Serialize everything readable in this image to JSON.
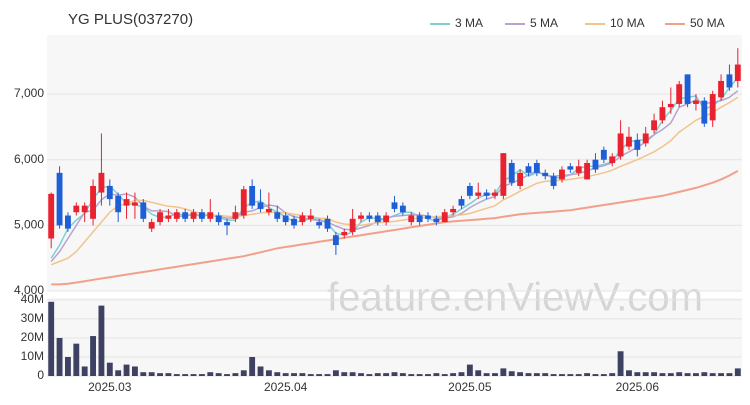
{
  "chart_data": {
    "type": "candlestick",
    "title": "YG PLUS(037270)",
    "watermark": "feature.enViewV.com",
    "categories": [
      null,
      null,
      null,
      null,
      null,
      null,
      null,
      "2025.03",
      null,
      null,
      null,
      null,
      null,
      null,
      null,
      null,
      null,
      null,
      null,
      null,
      null,
      null,
      null,
      null,
      null,
      null,
      null,
      null,
      "2025.04",
      null,
      null,
      null,
      null,
      null,
      null,
      null,
      null,
      null,
      null,
      null,
      null,
      null,
      null,
      null,
      null,
      null,
      null,
      null,
      null,
      null,
      "2025.05",
      null,
      null,
      null,
      null,
      null,
      null,
      null,
      null,
      null,
      null,
      null,
      null,
      null,
      null,
      null,
      null,
      null,
      null,
      null,
      "2025.06",
      null,
      null,
      null,
      null,
      null,
      null,
      null,
      null,
      null,
      null,
      null,
      null
    ],
    "open": [
      4800,
      5800,
      5150,
      5200,
      5200,
      5100,
      5500,
      5600,
      5450,
      5300,
      5300,
      5350,
      4950,
      5050,
      5100,
      5100,
      5200,
      5100,
      5200,
      5100,
      5150,
      5050,
      5100,
      5150,
      5600,
      5350,
      5200,
      5200,
      5150,
      5100,
      5050,
      5100,
      5050,
      5100,
      4850,
      4850,
      4900,
      5100,
      5150,
      5150,
      5050,
      5350,
      5300,
      5050,
      5150,
      5150,
      5100,
      5050,
      5200,
      5400,
      5600,
      5450,
      5500,
      5450,
      5450,
      5950,
      5600,
      5900,
      5950,
      5800,
      5750,
      5700,
      5900,
      5800,
      5700,
      6000,
      6150,
      5950,
      6050,
      6200,
      6300,
      6250,
      6450,
      6600,
      6800,
      6850,
      7300,
      6850,
      6900,
      6600,
      6950,
      7300,
      7200
    ],
    "high": [
      5500,
      5900,
      5200,
      5350,
      5350,
      5700,
      6400,
      5700,
      5500,
      5500,
      5500,
      5400,
      5100,
      5250,
      5250,
      5250,
      5250,
      5250,
      5250,
      5400,
      5200,
      5100,
      5300,
      5600,
      5700,
      5550,
      5500,
      5300,
      5200,
      5150,
      5200,
      5250,
      5100,
      5150,
      4900,
      4950,
      5250,
      5200,
      5200,
      5200,
      5200,
      5450,
      5350,
      5200,
      5200,
      5200,
      5150,
      5250,
      5300,
      5450,
      5650,
      5650,
      5550,
      5550,
      6100,
      6000,
      5850,
      5950,
      6000,
      5850,
      5800,
      5900,
      5950,
      6000,
      6000,
      6100,
      6200,
      6100,
      6600,
      6500,
      6400,
      6500,
      6700,
      6900,
      7100,
      7200,
      7300,
      7000,
      6950,
      7050,
      7300,
      7450,
      7700
    ],
    "low": [
      4650,
      4950,
      4900,
      5150,
      5050,
      5000,
      5300,
      5300,
      5050,
      5100,
      5100,
      5050,
      4900,
      5000,
      5050,
      5050,
      5050,
      5050,
      5050,
      5050,
      5000,
      4850,
      5050,
      5100,
      5250,
      5200,
      5150,
      5050,
      5000,
      4950,
      5000,
      5050,
      4950,
      4900,
      4550,
      4800,
      4850,
      5050,
      5050,
      5000,
      5000,
      5200,
      5150,
      5000,
      5000,
      5050,
      5000,
      5050,
      5150,
      5250,
      5400,
      5400,
      5400,
      5400,
      5400,
      5600,
      5550,
      5750,
      5750,
      5700,
      5550,
      5650,
      5800,
      5750,
      5700,
      5800,
      5950,
      5900,
      6000,
      6150,
      6050,
      6200,
      6400,
      6550,
      6700,
      6800,
      6800,
      6750,
      6500,
      6500,
      6900,
      7050,
      7100
    ],
    "close": [
      5480,
      5000,
      4950,
      5300,
      5300,
      5600,
      5800,
      5400,
      5200,
      5400,
      5350,
      5100,
      5050,
      5200,
      5150,
      5200,
      5100,
      5200,
      5100,
      5200,
      5050,
      5000,
      5200,
      5550,
      5300,
      5250,
      5250,
      5100,
      5050,
      5000,
      5150,
      5150,
      5000,
      4950,
      4700,
      4900,
      5100,
      5150,
      5100,
      5050,
      5150,
      5250,
      5200,
      5150,
      5050,
      5100,
      5050,
      5200,
      5250,
      5300,
      5450,
      5500,
      5450,
      5500,
      6100,
      5650,
      5800,
      5800,
      5800,
      5750,
      5600,
      5850,
      5850,
      5900,
      5950,
      5850,
      6000,
      6050,
      6400,
      6350,
      6150,
      6400,
      6600,
      6800,
      6850,
      7150,
      6850,
      6900,
      6550,
      7000,
      7200,
      7100,
      7450
    ],
    "up_color": "#e8222e",
    "down_color": "#1f5fd6",
    "ylim": [
      4000,
      7900
    ],
    "yticks": [
      {
        "value": 4000,
        "label": "4,000"
      },
      {
        "value": 5000,
        "label": "5,000"
      },
      {
        "value": 6000,
        "label": "6,000"
      },
      {
        "value": 7000,
        "label": "7,000"
      }
    ],
    "grid": true,
    "legend": "top-right",
    "series": [
      {
        "name": "3 MA",
        "color": "#7ecfd4",
        "values": [
          4500,
          4700,
          4950,
          5080,
          5180,
          5400,
          5570,
          5600,
          5470,
          5330,
          5320,
          5280,
          5170,
          5120,
          5130,
          5180,
          5150,
          5170,
          5130,
          5170,
          5120,
          5080,
          5080,
          5270,
          5350,
          5370,
          5270,
          5200,
          5130,
          5050,
          5070,
          5100,
          5100,
          5030,
          4880,
          4850,
          4900,
          5050,
          5120,
          5100,
          5100,
          5150,
          5200,
          5200,
          5130,
          5100,
          5070,
          5120,
          5170,
          5250,
          5330,
          5420,
          5470,
          5480,
          5680,
          5750,
          5850,
          5750,
          5800,
          5780,
          5720,
          5730,
          5770,
          5870,
          5900,
          5900,
          5930,
          5970,
          6150,
          6270,
          6300,
          6300,
          6380,
          6600,
          6750,
          6930,
          6950,
          6970,
          6770,
          6820,
          6920,
          7100,
          7250
        ]
      },
      {
        "name": "5 MA",
        "color": "#b7a3cf",
        "values": [
          4450,
          4600,
          4800,
          5000,
          5200,
          5230,
          5390,
          5480,
          5460,
          5480,
          5430,
          5290,
          5220,
          5220,
          5210,
          5140,
          5140,
          5170,
          5150,
          5160,
          5130,
          5110,
          5110,
          5200,
          5220,
          5270,
          5310,
          5290,
          5190,
          5130,
          5110,
          5090,
          5070,
          5050,
          4990,
          4940,
          4930,
          4960,
          5000,
          5060,
          5110,
          5140,
          5150,
          5160,
          5160,
          5140,
          5110,
          5110,
          5130,
          5180,
          5270,
          5340,
          5400,
          5440,
          5600,
          5640,
          5700,
          5770,
          5830,
          5760,
          5750,
          5760,
          5770,
          5790,
          5830,
          5880,
          5910,
          5950,
          6050,
          6120,
          6190,
          6270,
          6380,
          6460,
          6560,
          6800,
          6850,
          6910,
          6860,
          6870,
          6900,
          6950,
          7050
        ]
      },
      {
        "name": "10 MA",
        "color": "#f2c48d",
        "values": [
          4400,
          4450,
          4500,
          4600,
          4750,
          4900,
          5050,
          5200,
          5300,
          5330,
          5380,
          5380,
          5350,
          5320,
          5290,
          5280,
          5250,
          5210,
          5180,
          5160,
          5150,
          5140,
          5130,
          5150,
          5170,
          5190,
          5200,
          5200,
          5190,
          5170,
          5150,
          5130,
          5110,
          5100,
          5050,
          5020,
          5010,
          5000,
          5020,
          5040,
          5050,
          5060,
          5080,
          5100,
          5110,
          5120,
          5130,
          5140,
          5150,
          5160,
          5180,
          5220,
          5260,
          5300,
          5390,
          5450,
          5520,
          5580,
          5640,
          5670,
          5680,
          5690,
          5700,
          5720,
          5740,
          5770,
          5800,
          5840,
          5900,
          5950,
          6000,
          6060,
          6120,
          6200,
          6290,
          6420,
          6510,
          6600,
          6660,
          6720,
          6800,
          6870,
          6950
        ]
      },
      {
        "name": "50 MA",
        "color": "#f2a08a",
        "values": [
          4100,
          4100,
          4110,
          4130,
          4150,
          4170,
          4190,
          4210,
          4230,
          4250,
          4270,
          4290,
          4310,
          4330,
          4350,
          4370,
          4390,
          4410,
          4430,
          4450,
          4470,
          4490,
          4510,
          4530,
          4560,
          4590,
          4620,
          4650,
          4670,
          4690,
          4710,
          4730,
          4750,
          4770,
          4790,
          4810,
          4830,
          4850,
          4870,
          4890,
          4910,
          4930,
          4950,
          4970,
          4990,
          5010,
          5030,
          5050,
          5060,
          5070,
          5080,
          5090,
          5100,
          5110,
          5130,
          5150,
          5170,
          5180,
          5190,
          5200,
          5210,
          5220,
          5230,
          5250,
          5270,
          5290,
          5310,
          5330,
          5350,
          5370,
          5390,
          5410,
          5430,
          5450,
          5480,
          5510,
          5540,
          5570,
          5610,
          5650,
          5700,
          5760,
          5830
        ]
      }
    ],
    "volume": {
      "color": "#3e4162",
      "ylim": [
        0,
        41
      ],
      "yticks": [
        0,
        {
          "value": 10,
          "label": "10M"
        },
        {
          "value": 20,
          "label": "20M"
        },
        {
          "value": 30,
          "label": "30M"
        },
        {
          "value": 40,
          "label": "40M"
        }
      ],
      "values": [
        39,
        20,
        10,
        17,
        5,
        21,
        37,
        7,
        3,
        6,
        5,
        2,
        2,
        1.5,
        1.5,
        1,
        1,
        1,
        1,
        2,
        1.5,
        1,
        1.5,
        3,
        10,
        5,
        3,
        2,
        1.5,
        1.5,
        1.5,
        1,
        1,
        1,
        3,
        2,
        2,
        1.5,
        1,
        1.5,
        1.5,
        2,
        1.5,
        1,
        1,
        1,
        1.5,
        1,
        1.5,
        2,
        6,
        3,
        1.5,
        1.5,
        4,
        2.5,
        2,
        1.5,
        1.5,
        1.5,
        1,
        1,
        1,
        1,
        1.5,
        1,
        1,
        1.5,
        13,
        3,
        2,
        2,
        2,
        1.5,
        1.5,
        2,
        1.5,
        1.5,
        2,
        1.5,
        1.5,
        1.5,
        4
      ]
    }
  }
}
